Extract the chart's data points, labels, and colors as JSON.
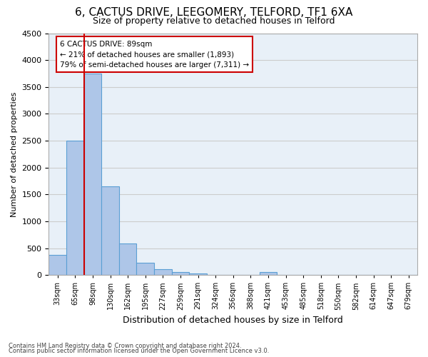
{
  "title": "6, CACTUS DRIVE, LEEGOMERY, TELFORD, TF1 6XA",
  "subtitle": "Size of property relative to detached houses in Telford",
  "xlabel": "Distribution of detached houses by size in Telford",
  "ylabel": "Number of detached properties",
  "categories": [
    "33sqm",
    "65sqm",
    "98sqm",
    "130sqm",
    "162sqm",
    "195sqm",
    "227sqm",
    "259sqm",
    "291sqm",
    "324sqm",
    "356sqm",
    "388sqm",
    "421sqm",
    "453sqm",
    "485sqm",
    "518sqm",
    "550sqm",
    "582sqm",
    "614sqm",
    "647sqm",
    "679sqm"
  ],
  "values": [
    370,
    2500,
    3750,
    1650,
    590,
    230,
    105,
    60,
    35,
    0,
    0,
    0,
    60,
    0,
    0,
    0,
    0,
    0,
    0,
    0,
    0
  ],
  "bar_color": "#aec6e8",
  "bar_edgecolor": "#5a9fd4",
  "vline_x_index": 1.5,
  "annotation_title": "6 CACTUS DRIVE: 89sqm",
  "annotation_line1": "← 21% of detached houses are smaller (1,893)",
  "annotation_line2": "79% of semi-detached houses are larger (7,311) →",
  "annotation_box_color": "#ffffff",
  "annotation_border_color": "#cc0000",
  "ylim": [
    0,
    4500
  ],
  "yticks": [
    0,
    500,
    1000,
    1500,
    2000,
    2500,
    3000,
    3500,
    4000,
    4500
  ],
  "grid_color": "#cccccc",
  "bg_color": "#e8f0f8",
  "footer_line1": "Contains HM Land Registry data © Crown copyright and database right 2024.",
  "footer_line2": "Contains public sector information licensed under the Open Government Licence v3.0.",
  "title_fontsize": 11,
  "subtitle_fontsize": 9,
  "ylabel_fontsize": 8,
  "xlabel_fontsize": 9,
  "vline_color": "#cc0000",
  "tick_label_fontsize": 7,
  "annotation_fontsize": 7.5
}
